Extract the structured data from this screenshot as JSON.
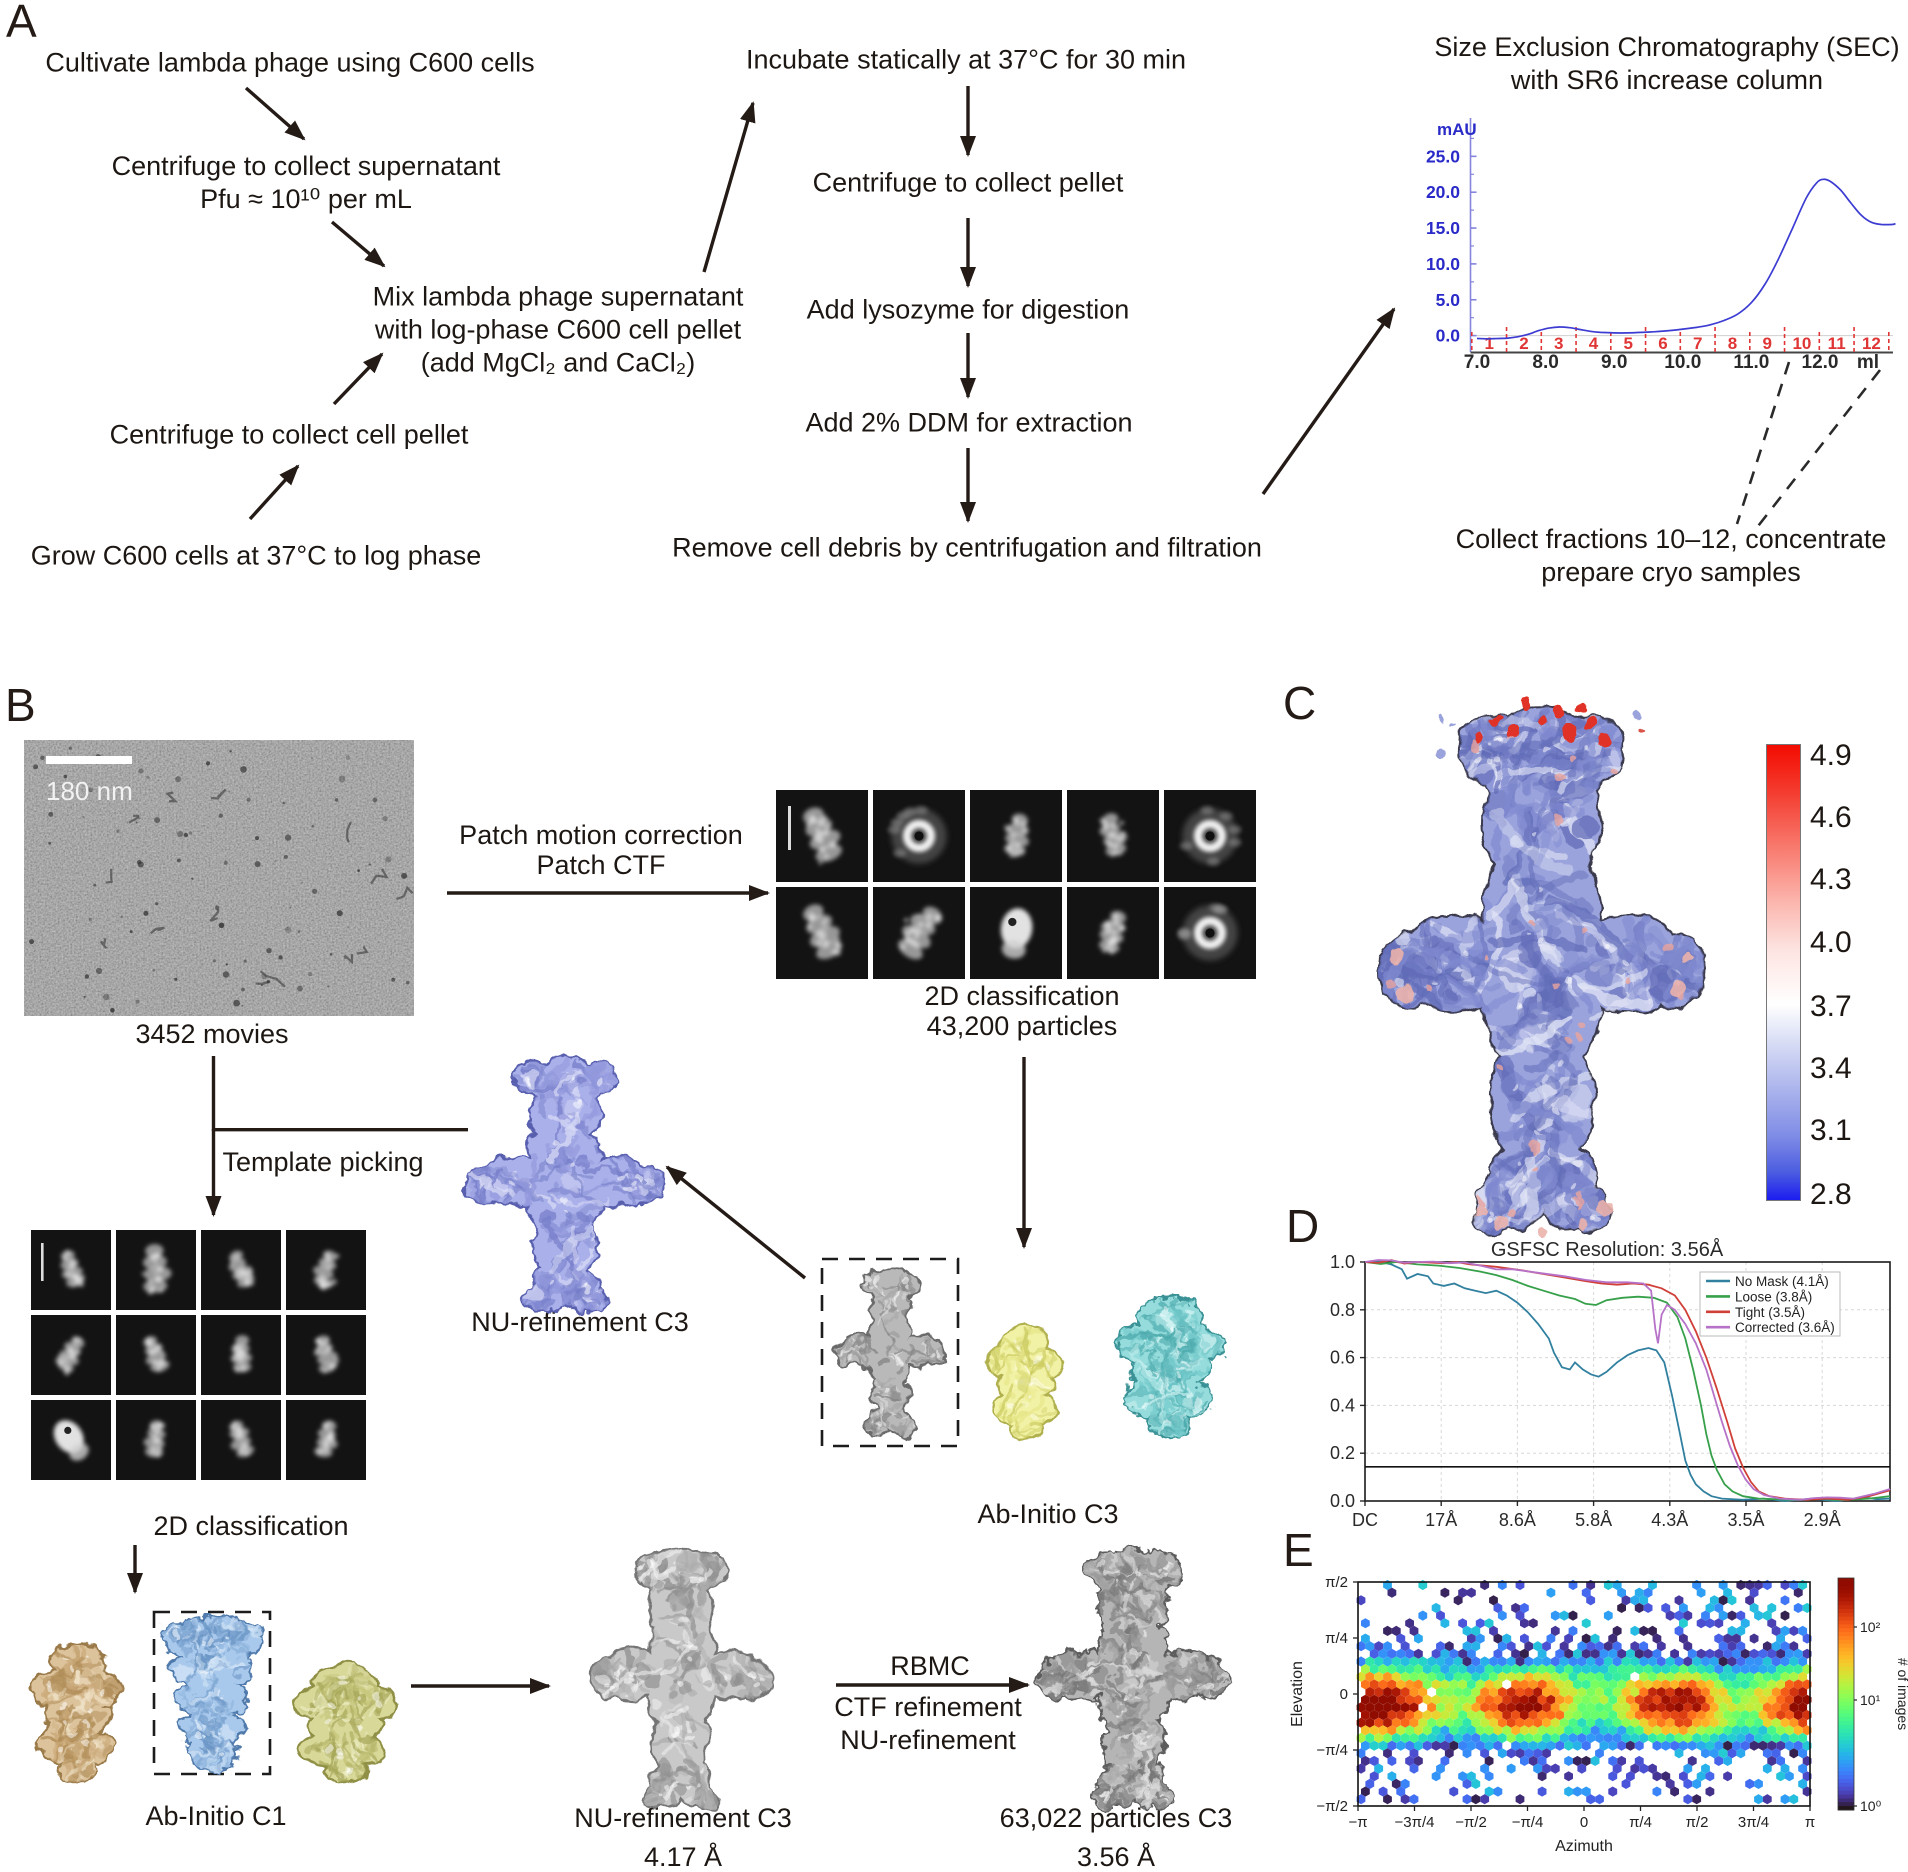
{
  "panel_labels": {
    "a": "A",
    "b": "B",
    "c": "C",
    "d": "D",
    "e": "E"
  },
  "panel_a": {
    "nodes": {
      "cultivate": "Cultivate lambda phage using C600 cells",
      "supernatant": "Centrifuge to collect supernatant\nPfu ≈ 10¹⁰ per mL",
      "mix": "Mix lambda phage supernatant\nwith log-phase C600 cell pellet\n(add MgCl₂ and CaCl₂)",
      "cell_pellet": "Centrifuge to collect cell pellet",
      "grow": "Grow C600 cells at 37°C to log phase",
      "incubate": "Incubate statically at 37°C for 30 min",
      "collect_pellet": "Centrifuge to collect pellet",
      "lysozyme": "Add lysozyme for digestion",
      "ddm": "Add 2% DDM for extraction",
      "debris": "Remove cell debris by centrifugation and filtration",
      "collect_fractions": "Collect fractions 10–12, concentrate\nprepare cryo samples",
      "sec_title": "Size Exclusion Chromatography (SEC)\nwith SR6 increase column"
    }
  },
  "panel_b": {
    "micrograph_scalebar": "180 nm",
    "movies": "3452 movies",
    "patch": "Patch motion correction\nPatch CTF",
    "classification_top": "2D classification\n43,200 particles",
    "template_picking": "Template picking",
    "classification_left": "2D classification",
    "nu_refinement_lavender": "NU-refinement C3",
    "ab_initio_c1": "Ab-Initio C1",
    "ab_initio_c3": "Ab-Initio C3",
    "nu_refinement_gray": "NU-refinement C3\n4.17 Å",
    "rbmc": "RBMC",
    "rbmc_sub": "CTF refinement\nNU-refinement",
    "final_map": "63,022 particles C3\n3.56 Å"
  },
  "panel_c": {
    "colorbar_ticks": [
      "4.9",
      "4.6",
      "4.3",
      "4.0",
      "3.7",
      "3.4",
      "3.1",
      "2.8"
    ]
  },
  "chart_data": [
    {
      "type": "line",
      "name": "sec_chromatogram",
      "title": "Size Exclusion Chromatography (SEC) with SR6 increase column",
      "ylabel": "mAU",
      "xlabel": "ml",
      "yticks": [
        "0.0",
        "5.0",
        "10.0",
        "15.0",
        "20.0",
        "25.0"
      ],
      "ytick_values": [
        0,
        5,
        10,
        15,
        20,
        25
      ],
      "xticks": [
        "7.0",
        "8.0",
        "9.0",
        "10.0",
        "11.0",
        "12.0"
      ],
      "xtick_values": [
        7,
        8,
        9,
        10,
        11,
        12
      ],
      "fraction_labels": [
        "1",
        "2",
        "3",
        "4",
        "5",
        "6",
        "7",
        "8",
        "9",
        "10",
        "11",
        "12"
      ],
      "xlim": [
        6.93,
        13.1
      ],
      "ylim": [
        -2.2,
        28
      ],
      "line_color": "#3c3cd2",
      "axis_color": "#8585dd",
      "tick_label_color": "#2a2ac8",
      "fraction_color": "#e03535",
      "x": [
        7.0,
        7.15,
        7.3,
        7.45,
        7.6,
        7.75,
        7.9,
        8.05,
        8.2,
        8.35,
        8.5,
        8.65,
        8.8,
        9.0,
        9.2,
        9.4,
        9.6,
        9.8,
        10.0,
        10.2,
        10.4,
        10.6,
        10.8,
        11.0,
        11.2,
        11.4,
        11.6,
        11.8,
        11.95,
        12.05,
        12.15,
        12.3,
        12.45,
        12.6,
        12.75,
        12.9,
        13.05,
        13.1
      ],
      "y": [
        -0.4,
        -0.45,
        -0.4,
        -0.35,
        -0.15,
        0.2,
        0.7,
        1.05,
        1.2,
        1.1,
        0.85,
        0.6,
        0.45,
        0.38,
        0.38,
        0.45,
        0.55,
        0.7,
        0.9,
        1.15,
        1.5,
        2.1,
        3.0,
        4.6,
        7.2,
        10.8,
        15.0,
        19.2,
        21.3,
        21.8,
        21.5,
        20.3,
        18.5,
        16.8,
        15.8,
        15.5,
        15.5,
        15.6
      ]
    },
    {
      "type": "line",
      "name": "gsfsc",
      "title": "GSFSC Resolution: 3.56Å",
      "xticks": [
        "DC",
        "17Å",
        "8.6Å",
        "5.8Å",
        "4.3Å",
        "3.5Å",
        "2.9Å"
      ],
      "yticks": [
        "0.0",
        "0.2",
        "0.4",
        "0.6",
        "0.8",
        "1.0"
      ],
      "ylim": [
        0,
        1
      ],
      "threshold": 0.143,
      "legend_position": "top-right",
      "series": [
        {
          "name": "No Mask (4.1Å)",
          "color": "#31809f",
          "x": [
            0,
            0.03,
            0.05,
            0.07,
            0.08,
            0.1,
            0.12,
            0.13,
            0.15,
            0.17,
            0.19,
            0.21,
            0.23,
            0.25,
            0.27,
            0.29,
            0.31,
            0.33,
            0.35,
            0.36,
            0.375,
            0.39,
            0.4,
            0.415,
            0.43,
            0.445,
            0.46,
            0.48,
            0.5,
            0.52,
            0.54,
            0.555,
            0.57,
            0.585,
            0.6,
            0.61,
            0.62,
            0.63,
            0.645,
            0.66,
            0.68,
            0.72,
            0.76,
            0.8,
            0.85,
            0.9,
            0.95,
            1
          ],
          "y": [
            1,
            1,
            0.99,
            0.97,
            0.93,
            0.95,
            0.94,
            0.91,
            0.9,
            0.91,
            0.89,
            0.88,
            0.87,
            0.88,
            0.86,
            0.83,
            0.79,
            0.74,
            0.68,
            0.62,
            0.56,
            0.55,
            0.58,
            0.55,
            0.53,
            0.52,
            0.54,
            0.58,
            0.61,
            0.63,
            0.64,
            0.63,
            0.58,
            0.44,
            0.28,
            0.17,
            0.11,
            0.07,
            0.04,
            0.02,
            0.01,
            0.005,
            0.01,
            0.0,
            0.01,
            0.0,
            0.015,
            0.01
          ]
        },
        {
          "name": "Loose (3.8Å)",
          "color": "#36a04a",
          "x": [
            0,
            0.06,
            0.1,
            0.14,
            0.18,
            0.22,
            0.25,
            0.28,
            0.31,
            0.34,
            0.37,
            0.4,
            0.42,
            0.44,
            0.46,
            0.49,
            0.52,
            0.55,
            0.575,
            0.595,
            0.61,
            0.625,
            0.64,
            0.65,
            0.66,
            0.67,
            0.685,
            0.7,
            0.72,
            0.75,
            0.78,
            0.82,
            0.87,
            0.92,
            0.96,
            1
          ],
          "y": [
            1,
            1,
            0.99,
            0.985,
            0.975,
            0.96,
            0.945,
            0.925,
            0.9,
            0.88,
            0.86,
            0.845,
            0.825,
            0.82,
            0.84,
            0.85,
            0.855,
            0.85,
            0.83,
            0.77,
            0.68,
            0.55,
            0.4,
            0.28,
            0.19,
            0.13,
            0.07,
            0.04,
            0.02,
            0.01,
            0.008,
            0.005,
            0.01,
            0.005,
            0.01,
            0.02
          ]
        },
        {
          "name": "Tight (3.5Å)",
          "color": "#d04038",
          "x": [
            0,
            0.1,
            0.15,
            0.2,
            0.25,
            0.3,
            0.34,
            0.38,
            0.42,
            0.45,
            0.48,
            0.51,
            0.54,
            0.565,
            0.59,
            0.61,
            0.63,
            0.65,
            0.67,
            0.69,
            0.705,
            0.72,
            0.735,
            0.75,
            0.77,
            0.8,
            0.84,
            0.88,
            0.92,
            0.96,
            1
          ],
          "y": [
            1,
            1,
            0.995,
            0.99,
            0.98,
            0.965,
            0.95,
            0.935,
            0.92,
            0.91,
            0.905,
            0.91,
            0.905,
            0.89,
            0.86,
            0.8,
            0.71,
            0.6,
            0.47,
            0.33,
            0.22,
            0.14,
            0.08,
            0.04,
            0.02,
            0.01,
            0.005,
            0.01,
            0.005,
            0.02,
            0.045
          ]
        },
        {
          "name": "Corrected (3.6Å)",
          "color": "#b671c8",
          "x": [
            0,
            0.1,
            0.16,
            0.22,
            0.28,
            0.33,
            0.38,
            0.42,
            0.46,
            0.5,
            0.53,
            0.545,
            0.553,
            0.558,
            0.565,
            0.575,
            0.59,
            0.61,
            0.63,
            0.65,
            0.665,
            0.68,
            0.695,
            0.71,
            0.725,
            0.74,
            0.76,
            0.79,
            0.83,
            0.88,
            0.93,
            0.97,
            1
          ],
          "y": [
            1,
            1,
            0.995,
            0.985,
            0.97,
            0.955,
            0.94,
            0.925,
            0.915,
            0.915,
            0.91,
            0.88,
            0.72,
            0.66,
            0.78,
            0.82,
            0.8,
            0.74,
            0.66,
            0.55,
            0.44,
            0.33,
            0.23,
            0.15,
            0.09,
            0.05,
            0.025,
            0.01,
            0.005,
            0.015,
            0.01,
            0.03,
            0.05
          ]
        }
      ]
    },
    {
      "type": "heatmap",
      "name": "orientation_distribution",
      "xlabel": "Azimuth",
      "ylabel": "Elevation",
      "xticks": [
        "−π",
        "−3π/4",
        "−π/2",
        "−π/4",
        "0",
        "π/4",
        "π/2",
        "3π/4",
        "π"
      ],
      "yticks": [
        "π/2",
        "π/4",
        "0",
        "−π/4",
        "−π/2"
      ],
      "colorbar_label": "# of images",
      "colorbar_ticks": [
        "10²",
        "10¹",
        "10⁰"
      ],
      "hotspots_azimuth": [
        -2.7,
        -0.85,
        1.25,
        3.14
      ],
      "hotspot_elevation": -0.15,
      "peak_count": 230,
      "band_count": 14
    }
  ]
}
